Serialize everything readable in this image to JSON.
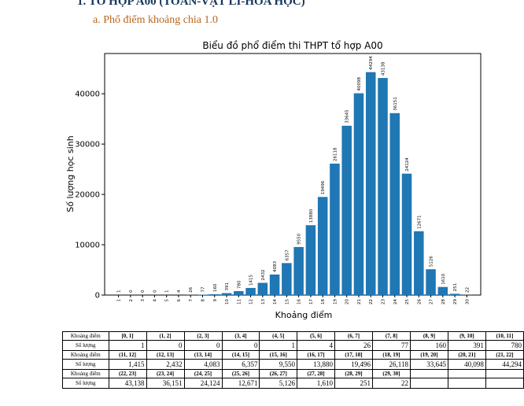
{
  "doc": {
    "heading": "1.  TỔ HỢP A00 (TOÁN-VẬT LÍ-HÓA HỌC)",
    "subheading": "a.  Phổ điểm khoảng chia 1.0"
  },
  "chart_data": {
    "type": "bar",
    "title": "Biểu đồ phổ điểm thi THPT tổ hợp A00",
    "xlabel": "Khoảng điểm",
    "ylabel": "Số lượng học sinh",
    "ylim": [
      0,
      48000
    ],
    "yticks": [
      0,
      10000,
      20000,
      30000,
      40000
    ],
    "categories": [
      "1",
      "2",
      "3",
      "4",
      "5",
      "6",
      "7",
      "8",
      "9",
      "10",
      "11",
      "12",
      "13",
      "14",
      "15",
      "16",
      "17",
      "18",
      "19",
      "20",
      "21",
      "22",
      "23",
      "24",
      "25",
      "26",
      "27",
      "28",
      "29",
      "30"
    ],
    "values": [
      1,
      0,
      0,
      0,
      1,
      4,
      26,
      77,
      160,
      391,
      780,
      1415,
      2432,
      4083,
      6357,
      9550,
      13880,
      19496,
      26118,
      33645,
      40098,
      44294,
      43138,
      36151,
      24124,
      12671,
      5126,
      1610,
      251,
      22
    ],
    "bar_color": "#1f77b4"
  },
  "table": {
    "row_label_range": "Khoảng điểm",
    "row_label_count": "Số lượng",
    "sections": [
      {
        "ranges": [
          "[0, 1]",
          "(1, 2]",
          "(2, 3]",
          "(3, 4]",
          "(4, 5]",
          "(5, 6]",
          "(6, 7]",
          "(7, 8]",
          "(8, 9]",
          "(9, 10]",
          "(10, 11]"
        ],
        "counts": [
          "1",
          "0",
          "0",
          "0",
          "1",
          "4",
          "26",
          "77",
          "160",
          "391",
          "780"
        ]
      },
      {
        "ranges": [
          "(11, 12]",
          "(12, 13]",
          "(13, 14]",
          "(14, 15]",
          "(15, 16]",
          "(16, 17]",
          "(17, 18]",
          "(18, 19]",
          "(19, 20]",
          "(20, 21]",
          "(21, 22]"
        ],
        "counts": [
          "1,415",
          "2,432",
          "4,083",
          "6,357",
          "9,550",
          "13,880",
          "19,496",
          "26,118",
          "33,645",
          "40,098",
          "44,294"
        ]
      },
      {
        "ranges": [
          "(22, 23]",
          "(23, 24]",
          "(24, 25]",
          "(25, 26]",
          "(26, 27]",
          "(27, 28]",
          "(28, 29]",
          "(29, 30]",
          "",
          "",
          ""
        ],
        "counts": [
          "43,138",
          "36,151",
          "24,124",
          "12,671",
          "5,126",
          "1,610",
          "251",
          "22",
          "",
          "",
          ""
        ]
      }
    ]
  }
}
